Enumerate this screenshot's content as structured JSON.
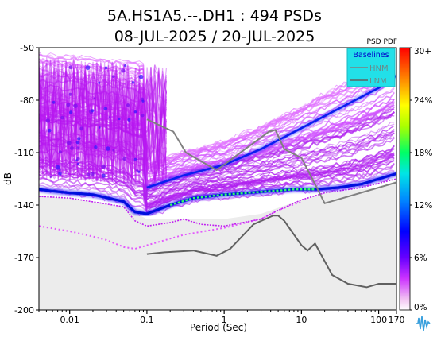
{
  "chart_data": {
    "type": "psd_pdf",
    "title": "5A.HS1A5.--.DH1 : 494 PSDs",
    "subtitle": "08-JUL-2025 / 20-JUL-2025",
    "xlabel": "Period (Sec)",
    "ylabel": "dB",
    "x_scale": "log",
    "xlim": [
      0.004,
      170
    ],
    "ylim": [
      -200,
      -50
    ],
    "x_ticks": [
      {
        "value": 0.01,
        "label": "0.01"
      },
      {
        "value": 0.1,
        "label": "0.1"
      },
      {
        "value": 1,
        "label": "1"
      },
      {
        "value": 10,
        "label": "10"
      },
      {
        "value": 100,
        "label": "100"
      },
      {
        "value": 170,
        "label": "170"
      }
    ],
    "y_ticks": [
      {
        "value": -50,
        "label": "-50"
      },
      {
        "value": -80,
        "label": "-80"
      },
      {
        "value": -110,
        "label": "-110"
      },
      {
        "value": -140,
        "label": "-140"
      },
      {
        "value": -170,
        "label": "-170"
      },
      {
        "value": -200,
        "label": "-200"
      }
    ],
    "colorbar": {
      "title": "PSD PDF",
      "ticks": [
        "30+",
        "24%",
        "18%",
        "12%",
        "6%",
        "0%"
      ]
    },
    "legend": {
      "title": "Baselines",
      "placement": "top-right",
      "entries": [
        "HNM",
        "LNM"
      ]
    },
    "series": [
      {
        "name": "HNM",
        "color": "#808080",
        "points": [
          [
            0.1,
            -91
          ],
          [
            0.22,
            -98
          ],
          [
            0.32,
            -110
          ],
          [
            0.8,
            -120
          ],
          [
            3.8,
            -98
          ],
          [
            4.6,
            -97
          ],
          [
            6,
            -108
          ],
          [
            10,
            -113
          ],
          [
            15,
            -128
          ],
          [
            20,
            -139
          ],
          [
            100,
            -130
          ],
          [
            170,
            -127
          ]
        ]
      },
      {
        "name": "LNM",
        "color": "#606060",
        "points": [
          [
            0.1,
            -168
          ],
          [
            0.17,
            -167
          ],
          [
            0.4,
            -166
          ],
          [
            0.8,
            -169
          ],
          [
            1.2,
            -165
          ],
          [
            2.4,
            -151
          ],
          [
            4.3,
            -146
          ],
          [
            5,
            -146
          ],
          [
            6,
            -149
          ],
          [
            10,
            -163
          ],
          [
            12,
            -166
          ],
          [
            15,
            -162
          ],
          [
            25,
            -180
          ],
          [
            40,
            -185
          ],
          [
            70,
            -187
          ],
          [
            100,
            -185
          ],
          [
            170,
            -185
          ]
        ]
      }
    ],
    "mode_curve": [
      [
        0.004,
        -131
      ],
      [
        0.006,
        -132
      ],
      [
        0.01,
        -133
      ],
      [
        0.02,
        -134
      ],
      [
        0.05,
        -138
      ],
      [
        0.07,
        -144
      ],
      [
        0.1,
        -145
      ],
      [
        0.2,
        -140
      ],
      [
        0.4,
        -136
      ],
      [
        1,
        -134
      ],
      [
        2,
        -133
      ],
      [
        4,
        -132
      ],
      [
        8,
        -131
      ],
      [
        15,
        -131
      ],
      [
        30,
        -130
      ],
      [
        60,
        -128
      ],
      [
        170,
        -122
      ]
    ],
    "upper_band": [
      [
        0.1,
        -130
      ],
      [
        0.3,
        -123
      ],
      [
        1,
        -117
      ],
      [
        3,
        -108
      ],
      [
        10,
        -96
      ],
      [
        30,
        -85
      ],
      [
        100,
        -73
      ],
      [
        170,
        -66
      ]
    ],
    "min_curve": [
      [
        0.004,
        -135
      ],
      [
        0.01,
        -136
      ],
      [
        0.05,
        -141
      ],
      [
        0.07,
        -149
      ],
      [
        0.1,
        -152
      ],
      [
        0.2,
        -150
      ],
      [
        0.3,
        -148
      ],
      [
        0.5,
        -151
      ],
      [
        1,
        -152
      ],
      [
        3,
        -148
      ],
      [
        5,
        -143
      ],
      [
        10,
        -137
      ],
      [
        20,
        -133
      ],
      [
        60,
        -130
      ],
      [
        170,
        -125
      ]
    ],
    "scattered_band": [
      [
        0.004,
        -152
      ],
      [
        0.01,
        -155
      ],
      [
        0.02,
        -158
      ],
      [
        0.03,
        -160
      ],
      [
        0.05,
        -164
      ],
      [
        0.07,
        -165
      ],
      [
        0.1,
        -163
      ],
      [
        0.3,
        -157
      ],
      [
        1,
        -153
      ],
      [
        3,
        -148
      ],
      [
        5,
        -143
      ],
      [
        10,
        -138
      ]
    ],
    "noise_floor": [
      [
        0.004,
        -135
      ],
      [
        0.01,
        -136
      ],
      [
        0.05,
        -141
      ],
      [
        0.1,
        -148
      ],
      [
        0.2,
        -148
      ],
      [
        1,
        -148
      ],
      [
        3,
        -145
      ],
      [
        10,
        -137
      ],
      [
        20,
        -133
      ],
      [
        100,
        -130
      ],
      [
        170,
        -126
      ]
    ]
  }
}
